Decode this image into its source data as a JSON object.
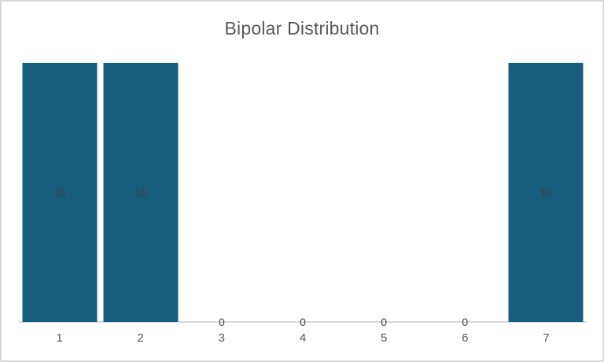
{
  "chart": {
    "title": "Bipolar Distribution"
  },
  "chart_data": {
    "type": "bar",
    "title": "Bipolar Distribution",
    "categories": [
      "1",
      "2",
      "3",
      "4",
      "5",
      "6",
      "7"
    ],
    "values": [
      10,
      10,
      0,
      0,
      0,
      0,
      10
    ],
    "xlabel": "",
    "ylabel": "",
    "ylim": [
      0,
      10
    ],
    "grid": false,
    "legend": false,
    "data_labels": true,
    "data_label_position": "center",
    "colors": {
      "bar_fill": "#175E7D",
      "data_label": "#404040",
      "tick_label": "#595959",
      "title": "#595959",
      "axis_line": "#D9D9D9",
      "canvas_border": "#D9D9D9",
      "background": "#FFFFFF"
    }
  }
}
